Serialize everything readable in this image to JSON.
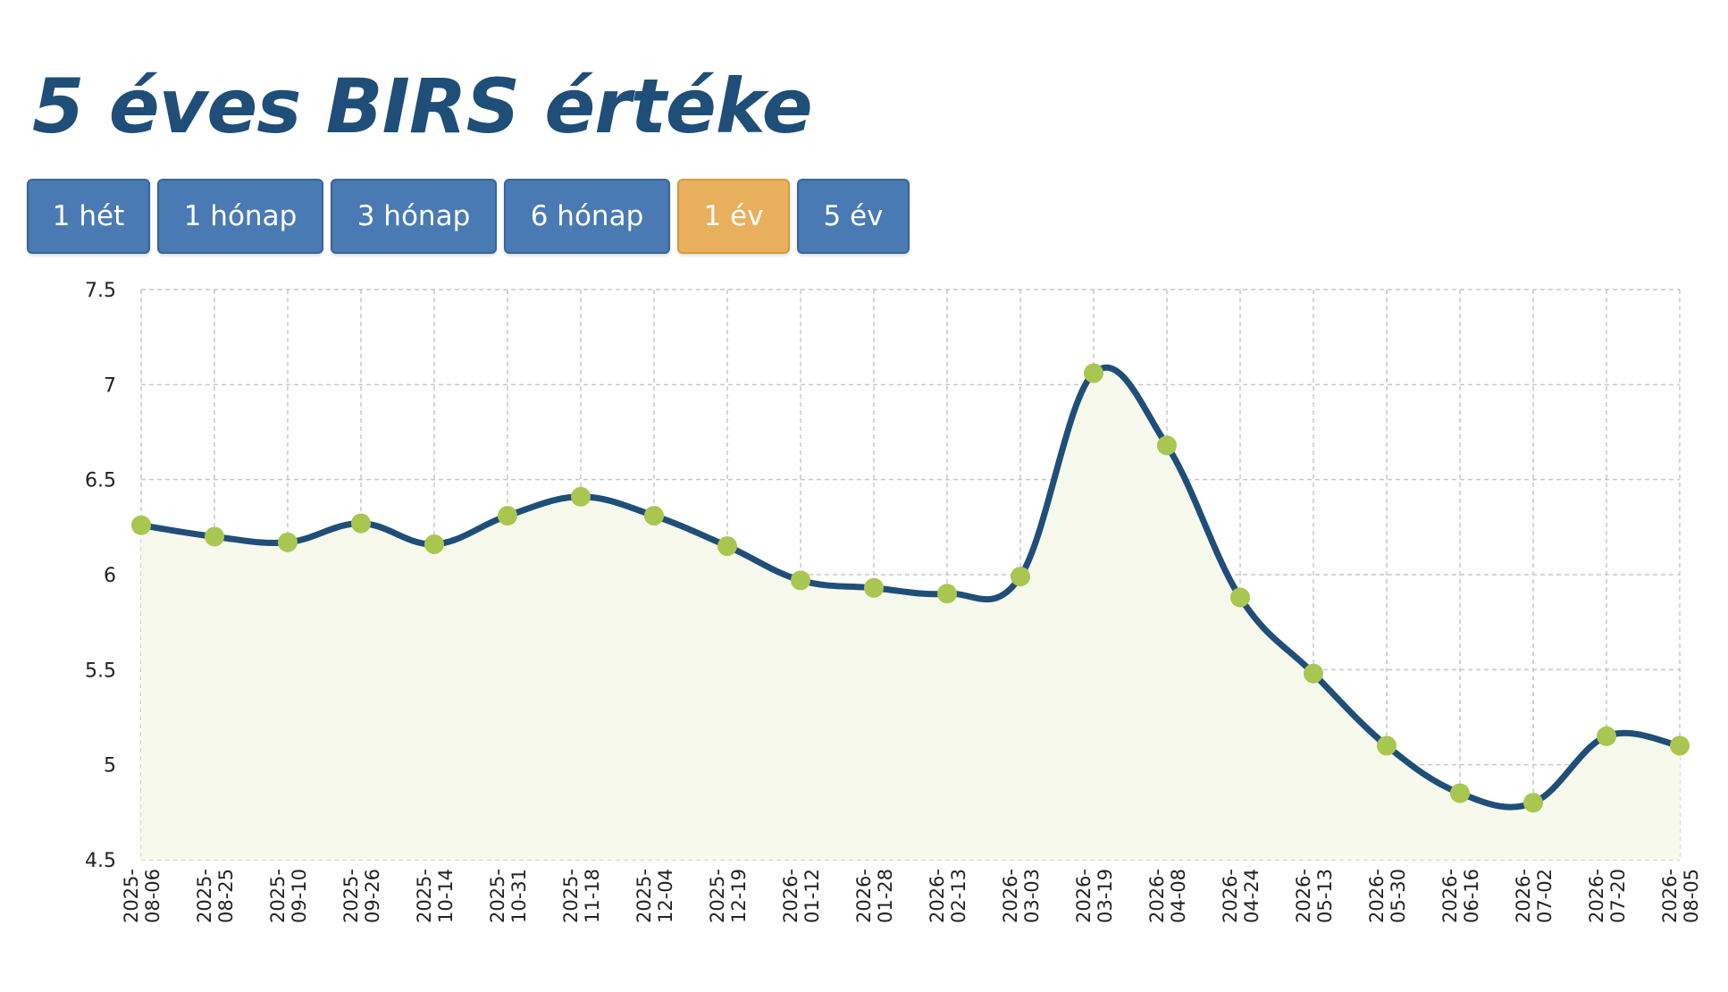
{
  "title": "5 éves BIRS értéke",
  "range_buttons": [
    {
      "label": "1 hét",
      "active": false
    },
    {
      "label": "1 hónap",
      "active": false
    },
    {
      "label": "3 hónap",
      "active": false
    },
    {
      "label": "6 hónap",
      "active": false
    },
    {
      "label": "1 év",
      "active": true
    },
    {
      "label": "5 év",
      "active": false
    }
  ],
  "colors": {
    "line": "#1f4e79",
    "point": "#a9c651",
    "area": "#f7f9ec",
    "grid": "#c8c8c8",
    "button": "#4a7ab4",
    "button_active": "#e8b05c"
  },
  "chart_data": {
    "type": "line",
    "title": "",
    "xlabel": "",
    "ylabel": "",
    "ylim": [
      4.5,
      7.5
    ],
    "yticks": [
      "7.5",
      "7",
      "6.5",
      "6",
      "5.5",
      "5",
      "4.5"
    ],
    "grid": true,
    "legend": "none",
    "categories": [
      [
        "2025-",
        "08-06"
      ],
      [
        "2025-",
        "08-25"
      ],
      [
        "2025-",
        "09-10"
      ],
      [
        "2025-",
        "09-26"
      ],
      [
        "2025-",
        "10-14"
      ],
      [
        "2025-",
        "10-31"
      ],
      [
        "2025-",
        "11-18"
      ],
      [
        "2025-",
        "12-04"
      ],
      [
        "2025-",
        "12-19"
      ],
      [
        "2026-",
        "01-12"
      ],
      [
        "2026-",
        "01-28"
      ],
      [
        "2026-",
        "02-13"
      ],
      [
        "2026-",
        "03-03"
      ],
      [
        "2026-",
        "03-19"
      ],
      [
        "2026-",
        "04-08"
      ],
      [
        "2026-",
        "04-24"
      ],
      [
        "2026-",
        "05-13"
      ],
      [
        "2026-",
        "05-30"
      ],
      [
        "2026-",
        "06-16"
      ],
      [
        "2026-",
        "07-02"
      ],
      [
        "2026-",
        "07-20"
      ],
      [
        "2026-",
        "08-05"
      ]
    ],
    "values": [
      6.26,
      6.2,
      6.17,
      6.27,
      6.16,
      6.31,
      6.41,
      6.31,
      6.15,
      5.97,
      5.93,
      5.9,
      5.99,
      7.06,
      6.68,
      5.88,
      5.48,
      5.1,
      4.85,
      4.8,
      5.15,
      5.1
    ]
  }
}
